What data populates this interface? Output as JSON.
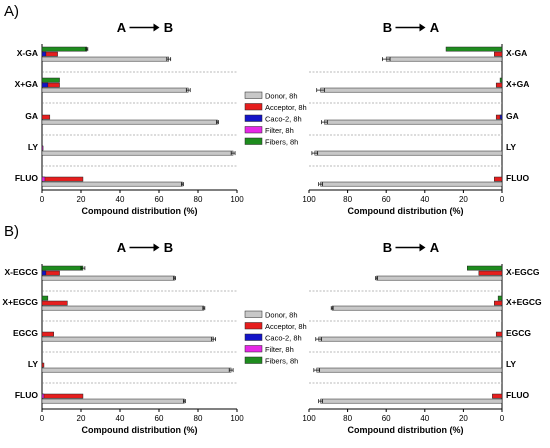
{
  "colors": {
    "donor": "#c8c8c8",
    "acceptor": "#e61e1e",
    "caco2": "#1414c8",
    "filter": "#e628e6",
    "fibers": "#1e8c1e",
    "axis": "#000000",
    "separator": "#777777"
  },
  "legend": {
    "entries": [
      {
        "key": "donor",
        "label": "Donor, 8h"
      },
      {
        "key": "acceptor",
        "label": "Acceptor, 8h"
      },
      {
        "key": "caco2",
        "label": "Caco-2, 8h"
      },
      {
        "key": "filter",
        "label": "Filter, 8h"
      },
      {
        "key": "fibers",
        "label": "Fibers, 8h"
      }
    ]
  },
  "chart_data": [
    {
      "type": "bar",
      "orientation": "horizontal",
      "panel": "A)",
      "title": "A",
      "direction_to": "B",
      "xlabel": "Compound distribution (%)",
      "xlim": [
        0,
        100
      ],
      "xticks": [
        "0",
        "20",
        "40",
        "60",
        "80",
        "100"
      ],
      "x_reversed": false,
      "categories": [
        "X-GA",
        "X+GA",
        "GA",
        "LY",
        "FLUO"
      ],
      "series": [
        {
          "name": "Donor, 8h",
          "key": "donor",
          "values": [
            65,
            75,
            90,
            98,
            72
          ]
        },
        {
          "name": "Acceptor, 8h",
          "key": "acceptor",
          "values": [
            8,
            9,
            4,
            0.5,
            21
          ]
        },
        {
          "name": "Caco-2, 8h",
          "key": "caco2",
          "values": [
            2,
            3,
            0,
            0,
            0
          ]
        },
        {
          "name": "Filter, 8h",
          "key": "filter",
          "values": [
            0,
            0,
            0,
            0.5,
            1.5
          ]
        },
        {
          "name": "Fibers, 8h",
          "key": "fibers",
          "values": [
            23,
            9,
            0,
            0,
            0
          ]
        }
      ],
      "errors": {
        "donor": [
          1,
          1,
          0.5,
          1,
          0.5
        ],
        "fibers": [
          0.5,
          0,
          0,
          0,
          0
        ]
      }
    },
    {
      "type": "bar",
      "orientation": "horizontal",
      "panel": "",
      "title": "B",
      "direction_to": "A",
      "xlabel": "Compound distribution (%)",
      "xlim": [
        0,
        100
      ],
      "xticks": [
        "100",
        "80",
        "60",
        "40",
        "20",
        "0"
      ],
      "x_reversed": true,
      "categories": [
        "X-GA",
        "X+GA",
        "GA",
        "LY",
        "FLUO"
      ],
      "series": [
        {
          "name": "Donor, 8h",
          "key": "donor",
          "values": [
            60,
            94,
            92,
            97,
            94
          ]
        },
        {
          "name": "Acceptor, 8h",
          "key": "acceptor",
          "values": [
            4,
            3,
            3,
            0,
            4
          ]
        },
        {
          "name": "Caco-2, 8h",
          "key": "caco2",
          "values": [
            0,
            0,
            1,
            0,
            0
          ]
        },
        {
          "name": "Filter, 8h",
          "key": "filter",
          "values": [
            0,
            0,
            0,
            0,
            0
          ]
        },
        {
          "name": "Fibers, 8h",
          "key": "fibers",
          "values": [
            29,
            1,
            0,
            0,
            0
          ]
        }
      ],
      "errors": {
        "donor": [
          2,
          2,
          1.5,
          1.5,
          1
        ],
        "fibers": [
          0,
          0,
          0,
          0,
          0
        ]
      }
    },
    {
      "type": "bar",
      "orientation": "horizontal",
      "panel": "B)",
      "title": "A",
      "direction_to": "B",
      "xlabel": "Compound distribution (%)",
      "xlim": [
        0,
        100
      ],
      "xticks": [
        "0",
        "20",
        "40",
        "60",
        "80",
        "100"
      ],
      "x_reversed": false,
      "categories": [
        "X-EGCG",
        "X+EGCG",
        "EGCG",
        "LY",
        "FLUO"
      ],
      "series": [
        {
          "name": "Donor, 8h",
          "key": "donor",
          "values": [
            68,
            83,
            88,
            97,
            73
          ]
        },
        {
          "name": "Acceptor, 8h",
          "key": "acceptor",
          "values": [
            9,
            13,
            6,
            1,
            21
          ]
        },
        {
          "name": "Caco-2, 8h",
          "key": "caco2",
          "values": [
            2,
            0,
            0,
            0,
            0
          ]
        },
        {
          "name": "Filter, 8h",
          "key": "filter",
          "values": [
            0,
            0,
            0,
            0,
            1
          ]
        },
        {
          "name": "Fibers, 8h",
          "key": "fibers",
          "values": [
            21,
            3,
            0,
            0,
            0
          ]
        }
      ],
      "errors": {
        "donor": [
          0.5,
          0.5,
          1,
          1,
          0.5
        ],
        "fibers": [
          1,
          0,
          0,
          0,
          0
        ]
      }
    },
    {
      "type": "bar",
      "orientation": "horizontal",
      "panel": "",
      "title": "B",
      "direction_to": "A",
      "xlabel": "Compound distribution (%)",
      "xlim": [
        0,
        100
      ],
      "xticks": [
        "100",
        "80",
        "60",
        "40",
        "20",
        "0"
      ],
      "x_reversed": true,
      "categories": [
        "X-EGCG",
        "X+EGCG",
        "EGCG",
        "LY",
        "FLUO"
      ],
      "series": [
        {
          "name": "Donor, 8h",
          "key": "donor",
          "values": [
            65,
            88,
            95,
            96,
            94
          ]
        },
        {
          "name": "Acceptor, 8h",
          "key": "acceptor",
          "values": [
            12,
            4,
            3,
            0,
            5
          ]
        },
        {
          "name": "Caco-2, 8h",
          "key": "caco2",
          "values": [
            0,
            0,
            0,
            0,
            0
          ]
        },
        {
          "name": "Filter, 8h",
          "key": "filter",
          "values": [
            0,
            0,
            0,
            0,
            0
          ]
        },
        {
          "name": "Fibers, 8h",
          "key": "fibers",
          "values": [
            18,
            2,
            0,
            0,
            0
          ]
        }
      ],
      "errors": {
        "donor": [
          0.5,
          0.5,
          1.5,
          1.5,
          1
        ],
        "fibers": [
          0,
          0,
          0,
          0,
          0
        ]
      }
    }
  ]
}
